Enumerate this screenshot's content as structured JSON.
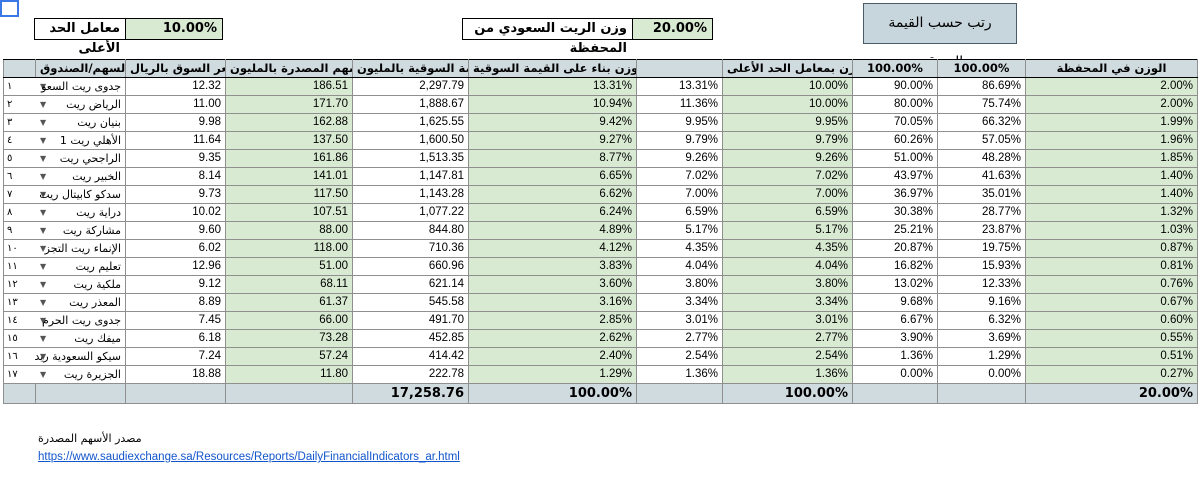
{
  "top": {
    "max_factor_label": "معامل الحد الأعلى",
    "max_factor_value": "10.00%",
    "reit_weight_label": "وزن الريت السعودي من المحفظة",
    "reit_weight_value": "20.00%",
    "rank_button": "رتب حسب القيمة السوقية"
  },
  "headers": [
    "الوزن في المحفظة",
    "100.00%",
    "100.00%",
    "الوزن بمعامل الحد الأعلى",
    "",
    "الوزن بناء على القيمة السوقية",
    "القيمة السوقية بالمليون",
    "الأسهم المصدرة بالمليون",
    "سعر السوق بالريال",
    "السهم/الصندوق"
  ],
  "rows": [
    {
      "idx": "١",
      "name": "جدوى ريت السعو",
      "w_port": "2.00%",
      "c1": "86.69%",
      "c2": "90.00%",
      "w_cap": "10.00%",
      "c5": "13.31%",
      "w_mkt": "13.31%",
      "mcap": "2,297.79",
      "shares": "186.51",
      "price": "12.32"
    },
    {
      "idx": "٢",
      "name": "الرياض ريت",
      "w_port": "2.00%",
      "c1": "75.74%",
      "c2": "80.00%",
      "w_cap": "10.00%",
      "c5": "11.36%",
      "w_mkt": "10.94%",
      "mcap": "1,888.67",
      "shares": "171.70",
      "price": "11.00"
    },
    {
      "idx": "٣",
      "name": "بنيان ريت",
      "w_port": "1.99%",
      "c1": "66.32%",
      "c2": "70.05%",
      "w_cap": "9.95%",
      "c5": "9.95%",
      "w_mkt": "9.42%",
      "mcap": "1,625.55",
      "shares": "162.88",
      "price": "9.98"
    },
    {
      "idx": "٤",
      "name": "الأهلي ريت 1",
      "w_port": "1.96%",
      "c1": "57.05%",
      "c2": "60.26%",
      "w_cap": "9.79%",
      "c5": "9.79%",
      "w_mkt": "9.27%",
      "mcap": "1,600.50",
      "shares": "137.50",
      "price": "11.64"
    },
    {
      "idx": "٥",
      "name": "الراجحي ريت",
      "w_port": "1.85%",
      "c1": "48.28%",
      "c2": "51.00%",
      "w_cap": "9.26%",
      "c5": "9.26%",
      "w_mkt": "8.77%",
      "mcap": "1,513.35",
      "shares": "161.86",
      "price": "9.35"
    },
    {
      "idx": "٦",
      "name": "الخبير ريت",
      "w_port": "1.40%",
      "c1": "41.63%",
      "c2": "43.97%",
      "w_cap": "7.02%",
      "c5": "7.02%",
      "w_mkt": "6.65%",
      "mcap": "1,147.81",
      "shares": "141.01",
      "price": "8.14"
    },
    {
      "idx": "٧",
      "name": "سدكو كابيتال ريت",
      "w_port": "1.40%",
      "c1": "35.01%",
      "c2": "36.97%",
      "w_cap": "7.00%",
      "c5": "7.00%",
      "w_mkt": "6.62%",
      "mcap": "1,143.28",
      "shares": "117.50",
      "price": "9.73"
    },
    {
      "idx": "٨",
      "name": "دراية ريت",
      "w_port": "1.32%",
      "c1": "28.77%",
      "c2": "30.38%",
      "w_cap": "6.59%",
      "c5": "6.59%",
      "w_mkt": "6.24%",
      "mcap": "1,077.22",
      "shares": "107.51",
      "price": "10.02"
    },
    {
      "idx": "٩",
      "name": "مشاركة ريت",
      "w_port": "1.03%",
      "c1": "23.87%",
      "c2": "25.21%",
      "w_cap": "5.17%",
      "c5": "5.17%",
      "w_mkt": "4.89%",
      "mcap": "844.80",
      "shares": "88.00",
      "price": "9.60"
    },
    {
      "idx": "١٠",
      "name": "الإنماء ريت التجز",
      "w_port": "0.87%",
      "c1": "19.75%",
      "c2": "20.87%",
      "w_cap": "4.35%",
      "c5": "4.35%",
      "w_mkt": "4.12%",
      "mcap": "710.36",
      "shares": "118.00",
      "price": "6.02"
    },
    {
      "idx": "١١",
      "name": "تعليم ريت",
      "w_port": "0.81%",
      "c1": "15.93%",
      "c2": "16.82%",
      "w_cap": "4.04%",
      "c5": "4.04%",
      "w_mkt": "3.83%",
      "mcap": "660.96",
      "shares": "51.00",
      "price": "12.96"
    },
    {
      "idx": "١٢",
      "name": "ملكية ريت",
      "w_port": "0.76%",
      "c1": "12.33%",
      "c2": "13.02%",
      "w_cap": "3.80%",
      "c5": "3.80%",
      "w_mkt": "3.60%",
      "mcap": "621.14",
      "shares": "68.11",
      "price": "9.12"
    },
    {
      "idx": "١٣",
      "name": "المعذر ريت",
      "w_port": "0.67%",
      "c1": "9.16%",
      "c2": "9.68%",
      "w_cap": "3.34%",
      "c5": "3.34%",
      "w_mkt": "3.16%",
      "mcap": "545.58",
      "shares": "61.37",
      "price": "8.89"
    },
    {
      "idx": "١٤",
      "name": "جدوى ريت الحرم",
      "w_port": "0.60%",
      "c1": "6.32%",
      "c2": "6.67%",
      "w_cap": "3.01%",
      "c5": "3.01%",
      "w_mkt": "2.85%",
      "mcap": "491.70",
      "shares": "66.00",
      "price": "7.45"
    },
    {
      "idx": "١٥",
      "name": "ميفك ريت",
      "w_port": "0.55%",
      "c1": "3.69%",
      "c2": "3.90%",
      "w_cap": "2.77%",
      "c5": "2.77%",
      "w_mkt": "2.62%",
      "mcap": "452.85",
      "shares": "73.28",
      "price": "6.18"
    },
    {
      "idx": "١٦",
      "name": "سيكو السعودية ريد",
      "w_port": "0.51%",
      "c1": "1.29%",
      "c2": "1.36%",
      "w_cap": "2.54%",
      "c5": "2.54%",
      "w_mkt": "2.40%",
      "mcap": "414.42",
      "shares": "57.24",
      "price": "7.24"
    },
    {
      "idx": "١٧",
      "name": "الجزيرة ريت",
      "w_port": "0.27%",
      "c1": "0.00%",
      "c2": "0.00%",
      "w_cap": "1.36%",
      "c5": "1.36%",
      "w_mkt": "1.29%",
      "mcap": "222.78",
      "shares": "11.80",
      "price": "18.88"
    }
  ],
  "totals": {
    "w_port": "20.00%",
    "w_cap": "100.00%",
    "w_mkt": "100.00%",
    "mcap": "17,258.76"
  },
  "source": {
    "label": "مصدر الأسهم المصدرة",
    "url": "https://www.saudiexchange.sa/Resources/Reports/DailyFinancialIndicators_ar.html"
  }
}
